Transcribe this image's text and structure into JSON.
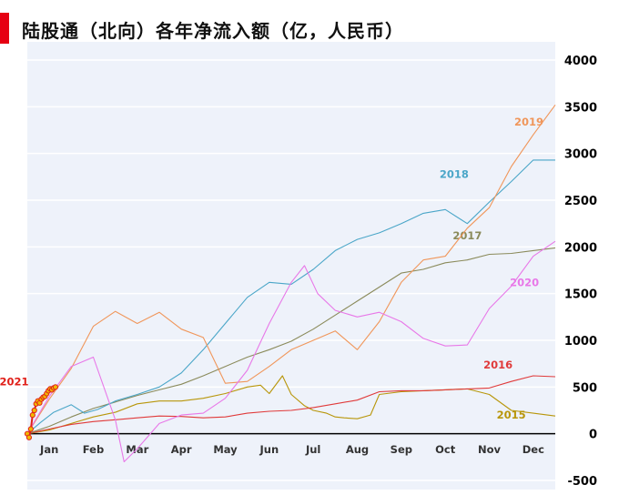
{
  "title": "陆股通（北向）各年净流入额（亿，人民币）",
  "colors": {
    "accent": "#e60012",
    "plot_background": "#eef2fa",
    "grid": "#ffffff"
  },
  "chart_data": {
    "type": "line",
    "title": "陆股通（北向）各年净流入额（亿，人民币）",
    "xlabel": "",
    "ylabel": "",
    "x_unit": "month",
    "x_range": [
      0,
      12
    ],
    "ylim": [
      -500,
      4000
    ],
    "yticks": [
      "4000",
      "3500",
      "3000",
      "2500",
      "2000",
      "1500",
      "1000",
      "500",
      "0",
      "-500"
    ],
    "xticks": [
      "Jan",
      "Feb",
      "Mar",
      "Apr",
      "May",
      "Jun",
      "Jul",
      "Aug",
      "Sep",
      "Oct",
      "Nov",
      "Dec"
    ],
    "grid": true,
    "series": [
      {
        "name": "2015",
        "color": "#b8960a",
        "x": [
          0,
          0.5,
          1,
          1.5,
          2,
          2.5,
          3,
          3.5,
          4,
          4.5,
          5,
          5.3,
          5.5,
          5.8,
          6,
          6.3,
          6.5,
          6.8,
          7,
          7.2,
          7.5,
          7.8,
          8,
          8.5,
          9,
          9.5,
          10,
          10.5,
          11,
          11.5,
          12
        ],
        "y": [
          0,
          40,
          110,
          180,
          230,
          320,
          350,
          350,
          380,
          430,
          500,
          520,
          430,
          620,
          420,
          300,
          250,
          220,
          180,
          170,
          160,
          200,
          420,
          450,
          460,
          470,
          480,
          420,
          250,
          220,
          190
        ]
      },
      {
        "name": "2016",
        "color": "#e03a3a",
        "x": [
          0,
          0.5,
          1,
          1.5,
          2,
          2.5,
          3,
          3.5,
          4,
          4.5,
          5,
          5.5,
          6,
          6.5,
          7,
          7.5,
          8,
          8.5,
          9,
          9.5,
          10,
          10.5,
          11,
          11.5,
          12
        ],
        "y": [
          0,
          50,
          100,
          130,
          150,
          170,
          190,
          185,
          170,
          180,
          220,
          240,
          250,
          280,
          320,
          360,
          450,
          460,
          460,
          470,
          480,
          490,
          560,
          620,
          610
        ]
      },
      {
        "name": "2017",
        "color": "#8a8a5a",
        "x": [
          0,
          0.5,
          1,
          1.5,
          2,
          2.5,
          3,
          3.5,
          4,
          4.5,
          5,
          5.5,
          6,
          6.5,
          7,
          7.5,
          8,
          8.5,
          9,
          9.5,
          10,
          10.5,
          11,
          11.5,
          12
        ],
        "y": [
          0,
          80,
          180,
          270,
          340,
          410,
          470,
          530,
          620,
          720,
          820,
          900,
          990,
          1120,
          1270,
          1420,
          1570,
          1720,
          1760,
          1830,
          1860,
          1920,
          1930,
          1960,
          1990
        ]
      },
      {
        "name": "2018",
        "color": "#4aa6c8",
        "x": [
          0,
          0.3,
          0.6,
          1,
          1.3,
          1.6,
          2,
          2.5,
          3,
          3.5,
          4,
          4.5,
          5,
          5.5,
          6,
          6.5,
          7,
          7.5,
          8,
          8.5,
          9,
          9.5,
          10,
          10.5,
          11,
          11.5,
          12
        ],
        "y": [
          0,
          120,
          230,
          310,
          220,
          260,
          350,
          420,
          500,
          650,
          900,
          1180,
          1460,
          1620,
          1600,
          1760,
          1960,
          2080,
          2150,
          2250,
          2360,
          2400,
          2250,
          2480,
          2700,
          2930,
          2930
        ]
      },
      {
        "name": "2019",
        "color": "#f0965a",
        "x": [
          0,
          0.5,
          1,
          1.5,
          2,
          2.5,
          3,
          3.5,
          4,
          4.5,
          5,
          5.5,
          6,
          6.5,
          7,
          7.5,
          8,
          8.5,
          9,
          9.5,
          10,
          10.5,
          11,
          11.5,
          12
        ],
        "y": [
          0,
          370,
          700,
          1150,
          1310,
          1180,
          1300,
          1120,
          1030,
          540,
          560,
          720,
          900,
          1000,
          1100,
          900,
          1200,
          1620,
          1860,
          1900,
          2200,
          2420,
          2860,
          3200,
          3520
        ]
      },
      {
        "name": "2020",
        "color": "#e878e8",
        "x": [
          0,
          0.5,
          1,
          1.5,
          2,
          2.2,
          2.5,
          3,
          3.5,
          4,
          4.5,
          5,
          5.5,
          6,
          6.3,
          6.6,
          7,
          7.5,
          8,
          8.5,
          9,
          9.5,
          10,
          10.5,
          11,
          11.5,
          12
        ],
        "y": [
          0,
          400,
          720,
          820,
          150,
          -300,
          -160,
          110,
          200,
          220,
          380,
          680,
          1180,
          1620,
          1800,
          1500,
          1320,
          1250,
          1300,
          1200,
          1020,
          940,
          950,
          1340,
          1580,
          1900,
          2060
        ]
      },
      {
        "name": "2021",
        "color": "#e0201a",
        "marker_fill": "#f0b800",
        "x": [
          0,
          0.04,
          0.08,
          0.12,
          0.16,
          0.2,
          0.24,
          0.28,
          0.32,
          0.36,
          0.4,
          0.44,
          0.48,
          0.52,
          0.56,
          0.6,
          0.64
        ],
        "y": [
          0,
          -40,
          50,
          200,
          250,
          320,
          350,
          330,
          370,
          390,
          400,
          430,
          460,
          480,
          470,
          490,
          500
        ]
      }
    ]
  }
}
